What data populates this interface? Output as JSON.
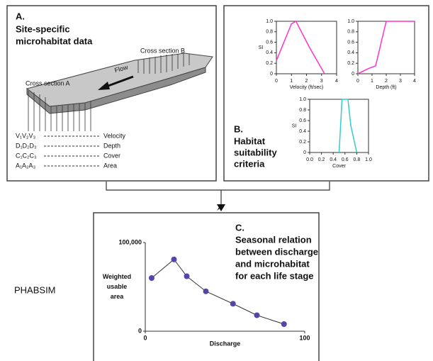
{
  "panel_a": {
    "letter": "A.",
    "title_lines": [
      "Site-specific",
      "microhabitat data"
    ],
    "cross_section_b": "Cross section B",
    "flow": "Flow",
    "cross_section_a": "Cross section A",
    "legend": [
      {
        "symbols": "V₁V₂V₃",
        "label": "Velocity"
      },
      {
        "symbols": "D₁D₂D₃",
        "label": "Depth"
      },
      {
        "symbols": "C₁C₂C₃",
        "label": "Cover"
      },
      {
        "symbols": "A₁A₂A₃",
        "label": "Area"
      }
    ]
  },
  "panel_b": {
    "letter": "B.",
    "title_lines": [
      "Habitat",
      "suitability",
      "criteria"
    ]
  },
  "panel_c": {
    "letter": "C.",
    "title_lines": [
      "Seasonal relation",
      "between discharge",
      "and microhabitat",
      "for each life stage"
    ]
  },
  "model_label": "PHABSIM",
  "chart_data": [
    {
      "type": "line",
      "xlabel": "Velocity (ft/sec)",
      "ylabel": "SI",
      "color": "#ff33cc",
      "x": [
        0,
        1,
        1.3,
        2.2,
        3.2
      ],
      "values": [
        0.25,
        0.95,
        1,
        0.5,
        0
      ],
      "xlim": [
        0,
        4
      ],
      "ylim": [
        0,
        1
      ],
      "xticks": [
        0,
        1,
        2,
        3,
        4
      ],
      "yticks": [
        0,
        0.2,
        0.4,
        0.6,
        0.8,
        {
          "value": 1,
          "label": "1.0"
        }
      ]
    },
    {
      "type": "line",
      "xlabel": "Depth (ft)",
      "color": "#ff33cc",
      "x": [
        0,
        0.75,
        1.25,
        2,
        4
      ],
      "values": [
        0,
        0.1,
        0.15,
        1,
        1
      ],
      "xlim": [
        0,
        4
      ],
      "ylim": [
        0,
        1
      ],
      "xticks": [
        0,
        1,
        2,
        3,
        4
      ],
      "yticks": [
        0,
        0.2,
        0.4,
        0.6,
        0.8,
        {
          "value": 1,
          "label": "1.0"
        }
      ]
    },
    {
      "type": "line",
      "xlabel": "Cover",
      "ylabel": "SI",
      "color": "#33cccc",
      "x": [
        0.5,
        0.55,
        0.65,
        0.7,
        0.8
      ],
      "values": [
        0,
        1,
        1,
        0.5,
        0
      ],
      "xlim": [
        0,
        1
      ],
      "ylim": [
        0,
        1
      ],
      "xticks": [
        {
          "value": 0,
          "label": "0.0"
        },
        0.2,
        0.4,
        0.6,
        0.8,
        {
          "value": 1,
          "label": "1.0"
        }
      ],
      "yticks": [
        0,
        0.2,
        0.4,
        0.6,
        0.8,
        {
          "value": 1,
          "label": "1.0"
        }
      ]
    },
    {
      "type": "line",
      "markers": true,
      "xlabel": "Discharge",
      "ylabel": [
        "Weighted",
        "usable",
        "area"
      ],
      "color": "#333333",
      "marker_color": "#5544aa",
      "x": [
        4,
        18,
        26,
        38,
        55,
        70,
        87
      ],
      "values": [
        60000,
        81000,
        62000,
        45000,
        31000,
        18000,
        8000
      ],
      "xlim": [
        0,
        100
      ],
      "ylim": [
        0,
        100000
      ],
      "xticks": [
        0,
        100
      ],
      "yticks": [
        0,
        {
          "value": 100000,
          "label": "100,000"
        }
      ]
    }
  ]
}
